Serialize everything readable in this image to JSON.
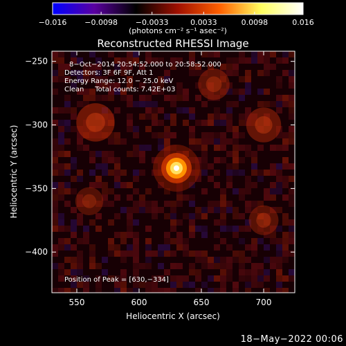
{
  "chart_data": {
    "type": "heatmap",
    "title": "Reconstructed RHESSI Image",
    "xlabel": "Heliocentric X (arcsec)",
    "ylabel": "Heliocentric Y (arcsec)",
    "xlim": [
      530,
      725
    ],
    "ylim": [
      -432,
      -242
    ],
    "x_ticks": [
      550,
      600,
      650,
      700
    ],
    "y_ticks": [
      -250,
      -300,
      -350,
      -400
    ],
    "colorbar": {
      "range": [
        -0.016,
        0.016
      ],
      "ticks": [
        -0.016,
        -0.0098,
        -0.0033,
        0.0033,
        0.0098,
        0.016
      ],
      "tick_labels": [
        "−0.016",
        "−0.0098",
        "−0.0033",
        "0.0033",
        "0.0098",
        "0.016"
      ],
      "units_text": "(photons cm⁻² s⁻¹ asec⁻²)",
      "colors": [
        "#0000ff",
        "#5a00a0",
        "#000000",
        "#a01000",
        "#ff6000",
        "#ffff60",
        "#ffffff"
      ]
    },
    "annotations": [
      "8−Oct−2014 20:54:52.000 to 20:58:52.000",
      "Detectors: 3F 6F 9F, Att 1",
      "Energy Range: 12.0 − 25.0 keV",
      "Clean     Total counts: 7.42E+03"
    ],
    "peak_label": "Position of Peak = [630,−334]",
    "peak": [
      630,
      -334
    ],
    "sources": [
      {
        "x": 630,
        "y": -334,
        "intensity": 0.016
      },
      {
        "x": 565,
        "y": -298,
        "intensity": 0.0055
      },
      {
        "x": 700,
        "y": -300,
        "intensity": 0.0045
      },
      {
        "x": 660,
        "y": -268,
        "intensity": 0.0035
      },
      {
        "x": 700,
        "y": -375,
        "intensity": 0.003
      },
      {
        "x": 560,
        "y": -360,
        "intensity": 0.0025
      }
    ]
  },
  "footer": {
    "date": "18−May−2022 00:06"
  }
}
